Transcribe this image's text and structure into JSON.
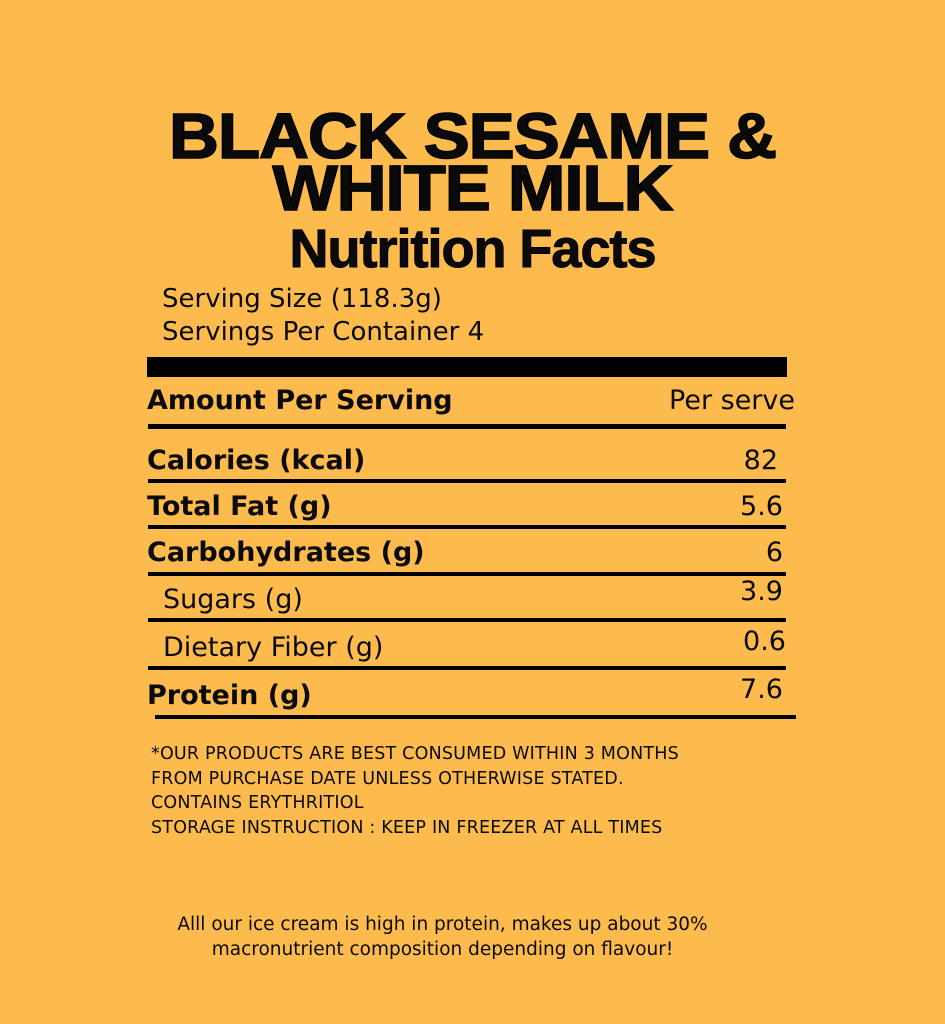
{
  "product_name_line1": "BLACK SESAME &",
  "product_name_line2": "WHITE MILK",
  "heading": "Nutrition Facts",
  "serving_size": "Serving Size (118.3g)",
  "servings_per_container": "Servings Per Container 4",
  "table": {
    "header_label": "Amount Per Serving",
    "header_value": "Per serve",
    "rows": [
      {
        "label": "Calories (kcal)",
        "value": "82"
      },
      {
        "label": "Total Fat (g)",
        "value": "5.6"
      },
      {
        "label": "Carbohydrates (g)",
        "value": "6"
      },
      {
        "label": "Sugars (g)",
        "value": "3.9"
      },
      {
        "label": "Dietary Fiber (g)",
        "value": "0.6"
      },
      {
        "label": "Protein (g)",
        "value": "7.6"
      }
    ]
  },
  "notes": [
    "*OUR PRODUCTS ARE BEST CONSUMED WITHIN 3 MONTHS",
    "FROM PURCHASE DATE UNLESS OTHERWISE STATED.",
    "CONTAINS ERYTHRITIOL",
    "STORAGE INSTRUCTION : KEEP IN FREEZER AT ALL TIMES"
  ],
  "tagline": [
    "Alll our ice cream is high in protein, makes up about 30%",
    "macronutrient composition depending on flavour!"
  ],
  "colors": {
    "background": "#FDBB4D",
    "text": "#0a0a0a"
  }
}
